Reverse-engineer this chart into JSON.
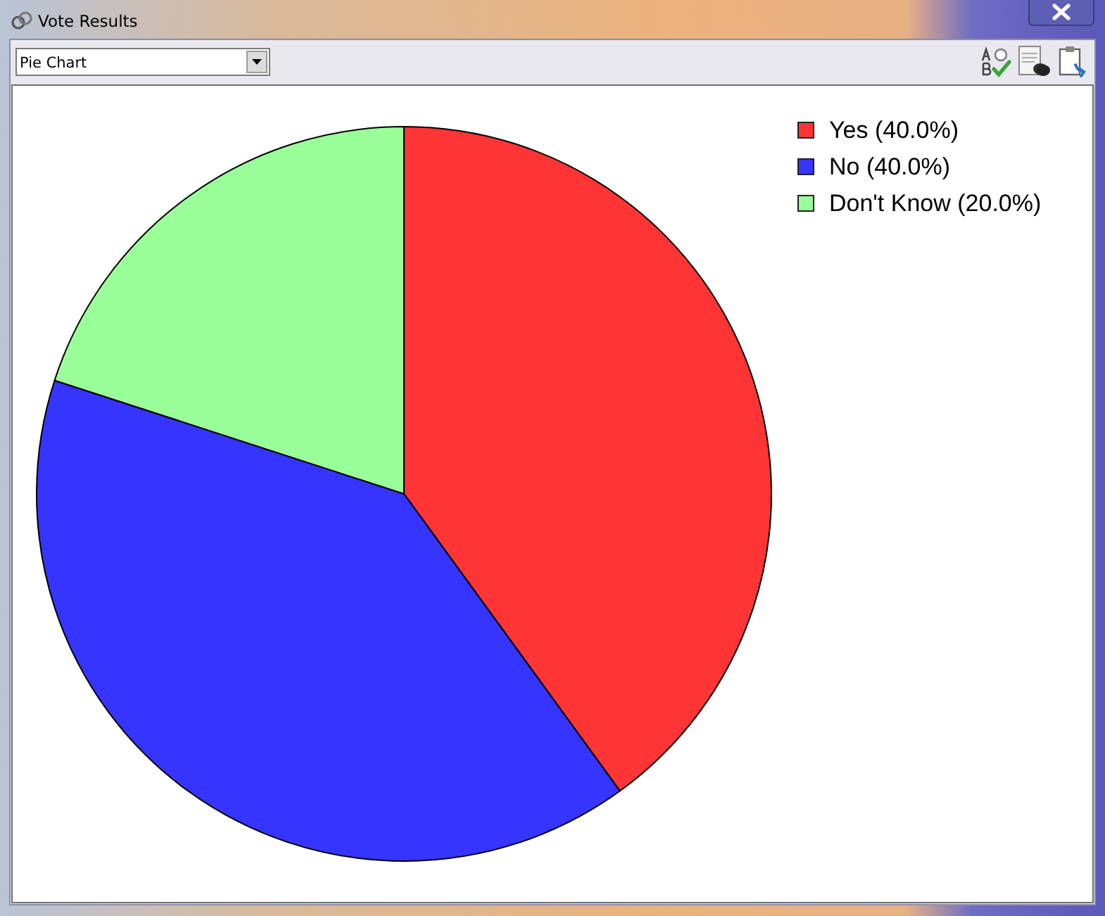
{
  "chart_data": {
    "type": "pie",
    "title": "Vote Results",
    "categories": [
      "Yes (40.0%)",
      "No (40.0%)",
      "Don't Know (20.0%)"
    ],
    "values": [
      40,
      40,
      20
    ],
    "colors": [
      "#ff3535",
      "#3535ff",
      "#99ff99"
    ],
    "legend": "top right",
    "annotations": [
      "Pie Chart"
    ]
  }
}
